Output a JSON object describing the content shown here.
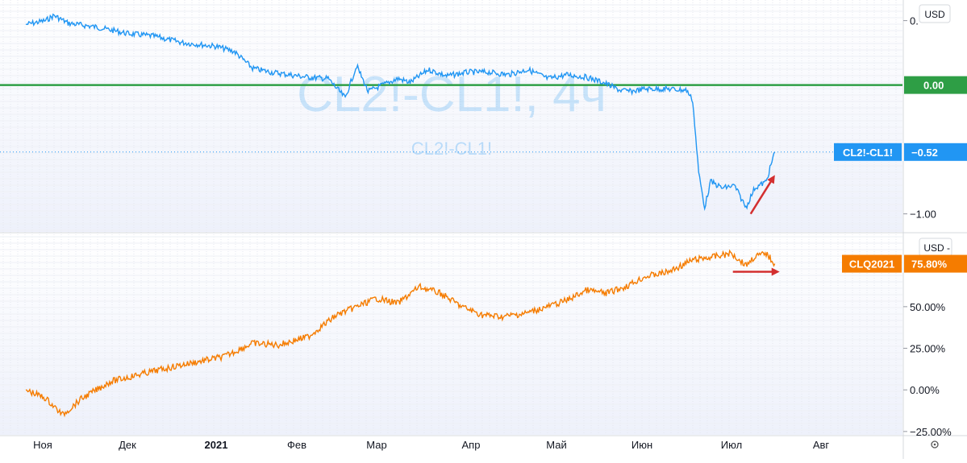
{
  "panes": {
    "top": {
      "watermark_main": "CL2!-CL1!, 4ч",
      "watermark_sub": "CL2!-CL1!",
      "currency": "USD",
      "y_ticks": [
        {
          "value": 0.5,
          "label": "0."
        },
        {
          "value": -1.0,
          "label": "−1.00"
        }
      ],
      "zero_line": {
        "value": 0.0,
        "label": "0.00",
        "color": "#2e9e45"
      },
      "last_value": {
        "value": -0.52,
        "symbol": "CL2!-CL1!",
        "label": "−0.52",
        "color": "#2196f3"
      }
    },
    "bottom": {
      "currency": "USD",
      "y_ticks": [
        {
          "value": 50,
          "label": "50.00%"
        },
        {
          "value": 25,
          "label": "25.00%"
        },
        {
          "value": 0,
          "label": "0.00%"
        },
        {
          "value": -25,
          "label": "−25.00%"
        }
      ],
      "last_value": {
        "value": 75.8,
        "symbol": "CLQ2021",
        "label": "75.80%",
        "color": "#f57c00"
      }
    }
  },
  "time_axis": {
    "labels": [
      {
        "text": "Ноя",
        "bold": false
      },
      {
        "text": "Дек",
        "bold": false
      },
      {
        "text": "2021",
        "bold": true
      },
      {
        "text": "Фев",
        "bold": false
      },
      {
        "text": "Мар",
        "bold": false
      },
      {
        "text": "Апр",
        "bold": false
      },
      {
        "text": "Май",
        "bold": false
      },
      {
        "text": "Июн",
        "bold": false
      },
      {
        "text": "Июл",
        "bold": false
      },
      {
        "text": "Авг",
        "bold": false
      }
    ],
    "settings_icon": "gear-icon"
  },
  "chart_data": [
    {
      "type": "line",
      "pane": "top",
      "series": [
        {
          "name": "CL2!-CL1!",
          "color": "#2196f3",
          "x": [
            "2020-10-26",
            "2020-11-02",
            "2020-11-05",
            "2020-11-10",
            "2020-11-20",
            "2020-12-01",
            "2020-12-10",
            "2020-12-20",
            "2021-01-01",
            "2021-01-08",
            "2021-01-15",
            "2021-01-22",
            "2021-01-29",
            "2021-02-05",
            "2021-02-12",
            "2021-02-18",
            "2021-02-22",
            "2021-02-26",
            "2021-03-03",
            "2021-03-08",
            "2021-03-12",
            "2021-03-18",
            "2021-03-24",
            "2021-03-31",
            "2021-04-07",
            "2021-04-14",
            "2021-04-21",
            "2021-04-28",
            "2021-05-05",
            "2021-05-12",
            "2021-05-18",
            "2021-05-24",
            "2021-05-28",
            "2021-06-02",
            "2021-06-09",
            "2021-06-16",
            "2021-06-18",
            "2021-06-20",
            "2021-06-22",
            "2021-06-24",
            "2021-06-28",
            "2021-07-02",
            "2021-07-06",
            "2021-07-09",
            "2021-07-13",
            "2021-07-16"
          ],
          "values": [
            0.47,
            0.5,
            0.54,
            0.48,
            0.45,
            0.4,
            0.38,
            0.33,
            0.3,
            0.26,
            0.13,
            0.1,
            0.08,
            0.06,
            0.05,
            -0.1,
            0.15,
            -0.05,
            0.0,
            0.05,
            0.02,
            0.12,
            0.07,
            0.1,
            0.1,
            0.08,
            0.12,
            0.05,
            0.08,
            0.06,
            0.02,
            -0.04,
            -0.05,
            -0.03,
            -0.03,
            -0.04,
            -0.12,
            -0.68,
            -0.95,
            -0.75,
            -0.8,
            -0.78,
            -0.95,
            -0.8,
            -0.75,
            -0.52
          ]
        }
      ],
      "ylim": [
        -1.14,
        0.66
      ],
      "annotations": [
        {
          "type": "arrow",
          "color": "#d32f2f",
          "direction": "up"
        }
      ]
    },
    {
      "type": "line",
      "pane": "bottom",
      "series": [
        {
          "name": "CLQ2021",
          "color": "#f57c00",
          "x": [
            "2020-10-26",
            "2020-11-02",
            "2020-11-08",
            "2020-11-15",
            "2020-11-25",
            "2020-12-07",
            "2020-12-20",
            "2021-01-04",
            "2021-01-15",
            "2021-01-25",
            "2021-02-05",
            "2021-02-15",
            "2021-02-22",
            "2021-03-01",
            "2021-03-08",
            "2021-03-15",
            "2021-03-22",
            "2021-03-29",
            "2021-04-05",
            "2021-04-12",
            "2021-04-20",
            "2021-04-28",
            "2021-05-05",
            "2021-05-12",
            "2021-05-19",
            "2021-05-26",
            "2021-06-02",
            "2021-06-10",
            "2021-06-18",
            "2021-06-25",
            "2021-07-01",
            "2021-07-06",
            "2021-07-09",
            "2021-07-13",
            "2021-07-16"
          ],
          "values": [
            0,
            -5,
            -15,
            -5,
            5,
            10,
            15,
            20,
            28,
            27,
            32,
            45,
            50,
            55,
            52,
            62,
            58,
            50,
            45,
            44,
            46,
            50,
            54,
            60,
            58,
            62,
            68,
            71,
            78,
            80,
            82,
            75,
            80,
            82,
            75.8
          ]
        }
      ],
      "ylim": [
        -27,
        93
      ],
      "annotations": [
        {
          "type": "arrow",
          "color": "#d32f2f",
          "direction": "right"
        }
      ]
    }
  ]
}
